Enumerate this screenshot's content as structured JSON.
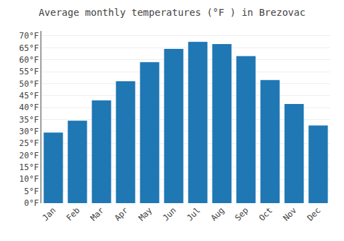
{
  "chart_data": {
    "type": "bar",
    "title": "Average monthly temperatures (°F ) in Brezovac",
    "categories": [
      "Jan",
      "Feb",
      "Mar",
      "Apr",
      "May",
      "Jun",
      "Jul",
      "Aug",
      "Sep",
      "Oct",
      "Nov",
      "Dec"
    ],
    "values": [
      29.5,
      34.5,
      43.0,
      51.0,
      59.0,
      64.5,
      67.5,
      66.5,
      61.5,
      51.5,
      41.5,
      32.5
    ],
    "ylim": [
      0,
      72
    ],
    "yticks": [
      {
        "value": 0,
        "label": "0°F"
      },
      {
        "value": 5,
        "label": "5°F"
      },
      {
        "value": 10,
        "label": "10°F"
      },
      {
        "value": 15,
        "label": "15°F"
      },
      {
        "value": 20,
        "label": "20°F"
      },
      {
        "value": 25,
        "label": "25°F"
      },
      {
        "value": 30,
        "label": "30°F"
      },
      {
        "value": 35,
        "label": "35°F"
      },
      {
        "value": 40,
        "label": "40°F"
      },
      {
        "value": 45,
        "label": "45°F"
      },
      {
        "value": 50,
        "label": "50°F"
      },
      {
        "value": 55,
        "label": "55°F"
      },
      {
        "value": 60,
        "label": "60°F"
      },
      {
        "value": 65,
        "label": "65°F"
      },
      {
        "value": 70,
        "label": "70°F"
      }
    ],
    "grid": true
  }
}
